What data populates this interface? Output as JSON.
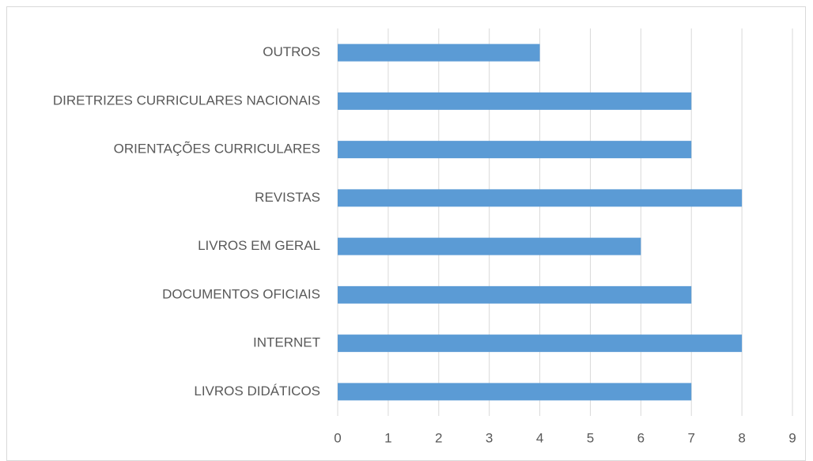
{
  "chart_data": {
    "type": "bar",
    "orientation": "horizontal",
    "categories": [
      "OUTROS",
      "DIRETRIZES CURRICULARES NACIONAIS",
      "ORIENTAÇÕES CURRICULARES",
      "REVISTAS",
      "LIVROS EM GERAL",
      "DOCUMENTOS OFICIAIS",
      "INTERNET",
      "LIVROS DIDÁTICOS"
    ],
    "values": [
      4,
      7,
      7,
      8,
      6,
      7,
      8,
      7
    ],
    "color": "#5b9bd5",
    "xlim": [
      0,
      9
    ],
    "xticks": [
      0,
      1,
      2,
      3,
      4,
      5,
      6,
      7,
      8,
      9
    ],
    "grid": true
  }
}
